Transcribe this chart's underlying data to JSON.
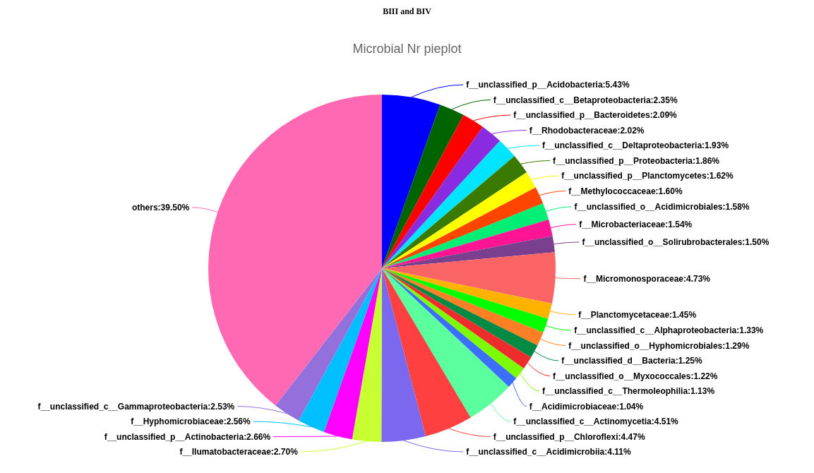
{
  "chart_data": {
    "type": "pie",
    "title": "BIII and BIV",
    "subtitle": "Microbial Nr pieplot",
    "categories": [
      "f__unclassified_p__Acidobacteria",
      "f__unclassified_c__Betaproteobacteria",
      "f__unclassified_p__Bacteroidetes",
      "f__Rhodobacteraceae",
      "f__unclassified_c__Deltaproteobacteria",
      "f__unclassified_p__Proteobacteria",
      "f__unclassified_p__Planctomycetes",
      "f__Methylococcaceae",
      "f__unclassified_o__Acidimicrobiales",
      "f__Microbacteriaceae",
      "f__unclassified_o__Solirubrobacterales",
      "f__Micromonosporaceae",
      "f__Planctomycetaceae",
      "f__unclassified_c__Alphaproteobacteria",
      "f__unclassified_o__Hyphomicrobiales",
      "f__unclassified_d__Bacteria",
      "f__unclassified_o__Myxococcales",
      "f__unclassified_c__Thermoleophilia",
      "f__Acidimicrobiaceae",
      "f__unclassified_c__Actinomycetia",
      "f__unclassified_p__Chloroflexi",
      "f__unclassified_c__Acidimicrobiia",
      "f__Ilumatobacteraceae",
      "f__unclassified_p__Actinobacteria",
      "f__Hyphomicrobiaceae",
      "f__unclassified_c__Gammaproteobacteria",
      "others"
    ],
    "values": [
      5.43,
      2.35,
      2.09,
      2.02,
      1.93,
      1.86,
      1.62,
      1.6,
      1.58,
      1.54,
      1.5,
      4.73,
      1.45,
      1.33,
      1.29,
      1.25,
      1.22,
      1.13,
      1.04,
      4.51,
      4.47,
      4.11,
      2.7,
      2.66,
      2.56,
      2.53,
      39.5
    ],
    "value_labels": [
      "5.43%",
      "2.35%",
      "2.09%",
      "2.02%",
      "1.93%",
      "1.86%",
      "1.62%",
      "1.60%",
      "1.58%",
      "1.54%",
      "1.50%",
      "4.73%",
      "1.45%",
      "1.33%",
      "1.29%",
      "1.25%",
      "1.22%",
      "1.13%",
      "1.04%",
      "4.51%",
      "4.47%",
      "4.11%",
      "2.70%",
      "2.66%",
      "2.56%",
      "2.53%",
      "39.50%"
    ],
    "colors": [
      "#0000ff",
      "#006400",
      "#ff0000",
      "#8a2be2",
      "#00e5ff",
      "#3a7a00",
      "#ffff00",
      "#ff4500",
      "#00ee76",
      "#ff1493",
      "#7b3f8f",
      "#fa6464",
      "#ffb300",
      "#00ff00",
      "#ff7f24",
      "#008b45",
      "#ee2c2c",
      "#7cfc00",
      "#3a6fff",
      "#5cff9d",
      "#ff4040",
      "#7b68ee",
      "#c8ff32",
      "#ff00ff",
      "#00bfff",
      "#9370db",
      "#ff69b4"
    ]
  }
}
